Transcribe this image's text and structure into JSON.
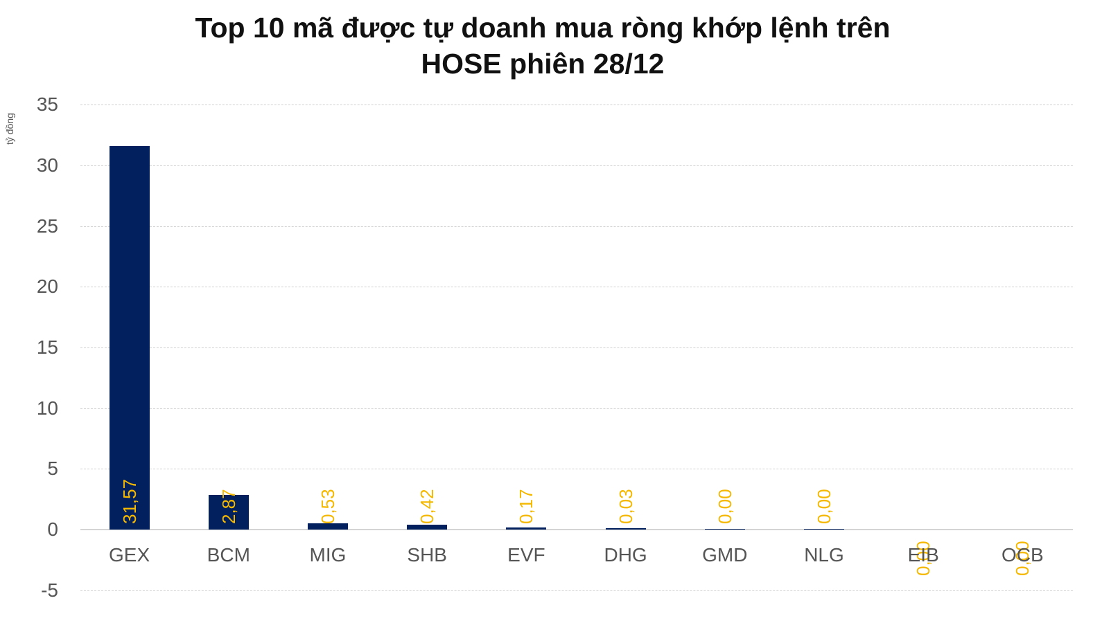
{
  "title_line1": "Top 10 mã được tự doanh mua ròng khớp lệnh trên",
  "title_line2": "HOSE phiên 28/12",
  "y_axis_label": "tỷ đồng",
  "colors": {
    "bar": "#02205e",
    "data_label": "#f5b800",
    "axis_text": "#555555",
    "grid": "#cfcfcf"
  },
  "y_ticks": [
    "35",
    "30",
    "25",
    "20",
    "15",
    "10",
    "5",
    "0",
    "-5"
  ],
  "bars": [
    {
      "category": "GEX",
      "label": "31,57"
    },
    {
      "category": "BCM",
      "label": "2,87"
    },
    {
      "category": "MIG",
      "label": "0,53"
    },
    {
      "category": "SHB",
      "label": "0,42"
    },
    {
      "category": "EVF",
      "label": "0,17"
    },
    {
      "category": "DHG",
      "label": "0,03"
    },
    {
      "category": "GMD",
      "label": "0,00"
    },
    {
      "category": "NLG",
      "label": "0,00"
    },
    {
      "category": "EIB",
      "label": "0,00"
    },
    {
      "category": "OCB",
      "label": "0,00"
    }
  ],
  "chart_data": {
    "type": "bar",
    "title": "Top 10 mã được tự doanh mua ròng khớp lệnh trên HOSE phiên 28/12",
    "xlabel": "",
    "ylabel": "tỷ đồng",
    "categories": [
      "GEX",
      "BCM",
      "MIG",
      "SHB",
      "EVF",
      "DHG",
      "GMD",
      "NLG",
      "EIB",
      "OCB"
    ],
    "values": [
      31.57,
      2.87,
      0.53,
      0.42,
      0.17,
      0.03,
      0.0,
      0.0,
      0.0,
      0.0
    ],
    "data_labels": [
      "31,57",
      "2,87",
      "0,53",
      "0,42",
      "0,17",
      "0,03",
      "0,00",
      "0,00",
      "0,00",
      "0,00"
    ],
    "ylim": [
      -5,
      35
    ],
    "yticks": [
      -5,
      0,
      5,
      10,
      15,
      20,
      25,
      30,
      35
    ],
    "grid": true,
    "legend": null
  }
}
